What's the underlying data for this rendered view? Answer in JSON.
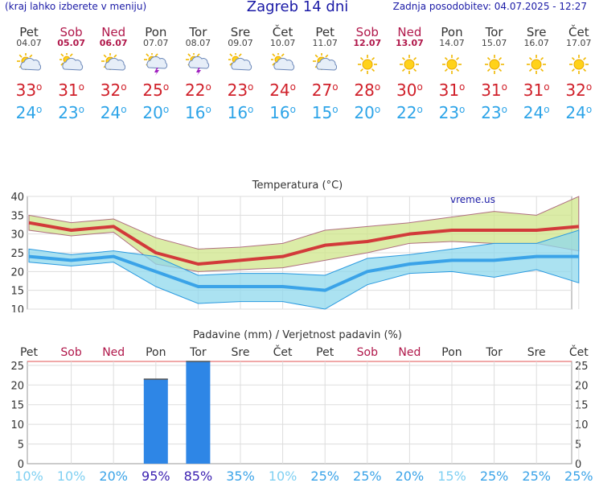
{
  "header": {
    "menu_hint": "(kraj lahko izberete v meniju)",
    "title": "Zagreb 14 dni",
    "updated": "Zadnja posodobitev: 04.07.2025 - 12:27"
  },
  "days": [
    {
      "name": "Pet",
      "date": "04.07",
      "weekend": false,
      "icon": "partly-cloudy-icon",
      "max": "33",
      "min": "24"
    },
    {
      "name": "Sob",
      "date": "05.07",
      "weekend": true,
      "icon": "cloudy-icon",
      "max": "31",
      "min": "23"
    },
    {
      "name": "Ned",
      "date": "06.07",
      "weekend": true,
      "icon": "partly-cloudy-icon",
      "max": "32",
      "min": "24"
    },
    {
      "name": "Pon",
      "date": "07.07",
      "weekend": false,
      "icon": "thunderstorm-icon",
      "max": "25",
      "min": "20"
    },
    {
      "name": "Tor",
      "date": "08.07",
      "weekend": false,
      "icon": "thunderstorm-icon",
      "max": "22",
      "min": "16"
    },
    {
      "name": "Sre",
      "date": "09.07",
      "weekend": false,
      "icon": "cloudy-icon",
      "max": "23",
      "min": "16"
    },
    {
      "name": "Čet",
      "date": "10.07",
      "weekend": false,
      "icon": "cloudy-icon",
      "max": "24",
      "min": "16"
    },
    {
      "name": "Pet",
      "date": "11.07",
      "weekend": false,
      "icon": "partly-cloudy-icon",
      "max": "27",
      "min": "15"
    },
    {
      "name": "Sob",
      "date": "12.07",
      "weekend": true,
      "icon": "sun-icon",
      "max": "28",
      "min": "20"
    },
    {
      "name": "Ned",
      "date": "13.07",
      "weekend": true,
      "icon": "sun-icon",
      "max": "30",
      "min": "22"
    },
    {
      "name": "Pon",
      "date": "14.07",
      "weekend": false,
      "icon": "sun-icon",
      "max": "31",
      "min": "23"
    },
    {
      "name": "Tor",
      "date": "15.07",
      "weekend": false,
      "icon": "sun-icon",
      "max": "31",
      "min": "23"
    },
    {
      "name": "Sre",
      "date": "16.07",
      "weekend": false,
      "icon": "sun-icon",
      "max": "31",
      "min": "24"
    },
    {
      "name": "Čet",
      "date": "17.07",
      "weekend": false,
      "icon": "sun-icon",
      "max": "32",
      "min": "24"
    }
  ],
  "colors": {
    "max_line": "#d23a3a",
    "min_line": "#3aa3e8",
    "max_band": "#cfe68a",
    "min_band": "#8fd8ec",
    "rain_bar": "#2e86e6",
    "weekend": "#b0174a",
    "prob_high": "#3a1fb0",
    "prob_low": "#7fd0f2"
  },
  "chart_data": [
    {
      "type": "line",
      "title": "Temperatura (°C)",
      "watermark": "vreme.us",
      "x": [
        "Pet",
        "Sob",
        "Ned",
        "Pon",
        "Tor",
        "Sre",
        "Čet",
        "Pet",
        "Sob",
        "Ned",
        "Pon",
        "Tor",
        "Sre",
        "Čet"
      ],
      "ylim": [
        10,
        40
      ],
      "yticks": [
        10,
        15,
        20,
        25,
        30,
        35,
        40
      ],
      "grid": true,
      "series": [
        {
          "role": "max",
          "values": [
            33,
            31,
            32,
            25,
            22,
            23,
            24,
            27,
            28,
            30,
            31,
            31,
            31,
            32
          ]
        },
        {
          "role": "max_upper",
          "values": [
            35,
            33,
            34,
            29,
            26,
            26.5,
            27.5,
            31,
            32,
            33,
            34.5,
            36,
            35,
            40
          ]
        },
        {
          "role": "max_lower",
          "values": [
            31,
            29.5,
            30.5,
            22,
            20,
            20.5,
            21,
            23,
            25,
            27.5,
            28,
            27.5,
            27.5,
            25.5
          ]
        },
        {
          "role": "min",
          "values": [
            24,
            23,
            24,
            20,
            16,
            16,
            16,
            15,
            20,
            22,
            23,
            23,
            24,
            24
          ]
        },
        {
          "role": "min_upper",
          "values": [
            26,
            24.5,
            25.5,
            24,
            19,
            19.5,
            19.5,
            19,
            23.5,
            24.5,
            26,
            27.5,
            27.5,
            31
          ]
        },
        {
          "role": "min_lower",
          "values": [
            22.5,
            21.5,
            22.5,
            16,
            11.5,
            12,
            12,
            10,
            16.5,
            19.5,
            20,
            18.5,
            20.5,
            17
          ]
        }
      ]
    },
    {
      "type": "bar",
      "title": "Padavine (mm) / Verjetnost padavin (%)",
      "categories": [
        "Pet",
        "Sob",
        "Ned",
        "Pon",
        "Tor",
        "Sre",
        "Čet",
        "Pet",
        "Sob",
        "Ned",
        "Pon",
        "Tor",
        "Sre",
        "Čet"
      ],
      "values": [
        0,
        0,
        0,
        21.5,
        26,
        0,
        0,
        0,
        0,
        0,
        0,
        0,
        0,
        0
      ],
      "probability_labels": [
        "10%",
        "10%",
        "20%",
        "95%",
        "85%",
        "35%",
        "10%",
        "25%",
        "25%",
        "20%",
        "15%",
        "25%",
        "25%",
        "25%"
      ],
      "probability": [
        10,
        10,
        20,
        95,
        85,
        35,
        10,
        25,
        25,
        20,
        15,
        25,
        25,
        25
      ],
      "ylim": [
        0,
        26
      ],
      "yticks": [
        0,
        5,
        10,
        15,
        20,
        25
      ],
      "grid": true
    }
  ]
}
